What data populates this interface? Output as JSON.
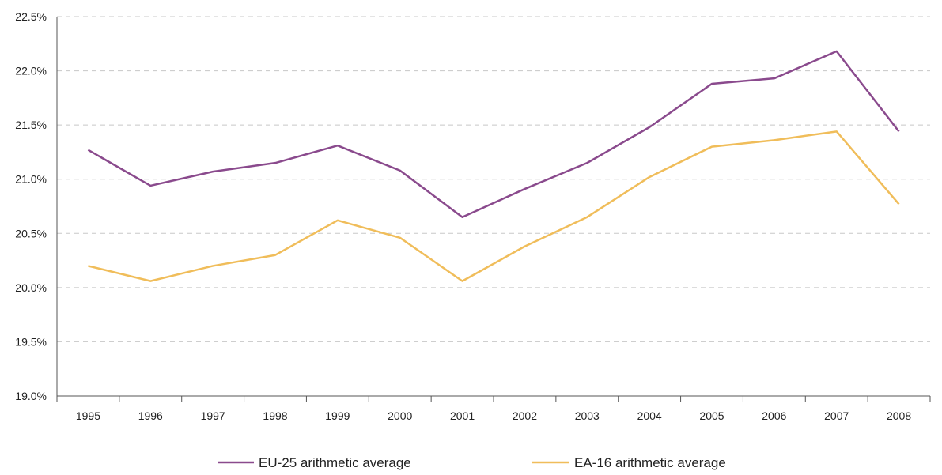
{
  "chart_data": {
    "type": "line",
    "categories": [
      "1995",
      "1996",
      "1997",
      "1998",
      "1999",
      "2000",
      "2001",
      "2002",
      "2003",
      "2004",
      "2005",
      "2006",
      "2007",
      "2008"
    ],
    "series": [
      {
        "name": "EU-25 arithmetic average",
        "color": "#8a4a8d",
        "values": [
          21.27,
          20.94,
          21.07,
          21.15,
          21.31,
          21.08,
          20.65,
          20.91,
          21.15,
          21.48,
          21.88,
          21.93,
          22.18,
          21.44
        ]
      },
      {
        "name": "EA-16 arithmetic average",
        "color": "#f0bd5a",
        "values": [
          20.2,
          20.06,
          20.2,
          20.3,
          20.62,
          20.46,
          20.06,
          20.38,
          20.65,
          21.02,
          21.3,
          21.36,
          21.44,
          20.77
        ]
      }
    ],
    "y_ticks": [
      "19.0%",
      "19.5%",
      "20.0%",
      "20.5%",
      "21.0%",
      "21.5%",
      "22.0%",
      "22.5%"
    ],
    "ylim": [
      19.0,
      22.5
    ],
    "grid": "horizontal dashed",
    "legend": "bottom-center"
  }
}
